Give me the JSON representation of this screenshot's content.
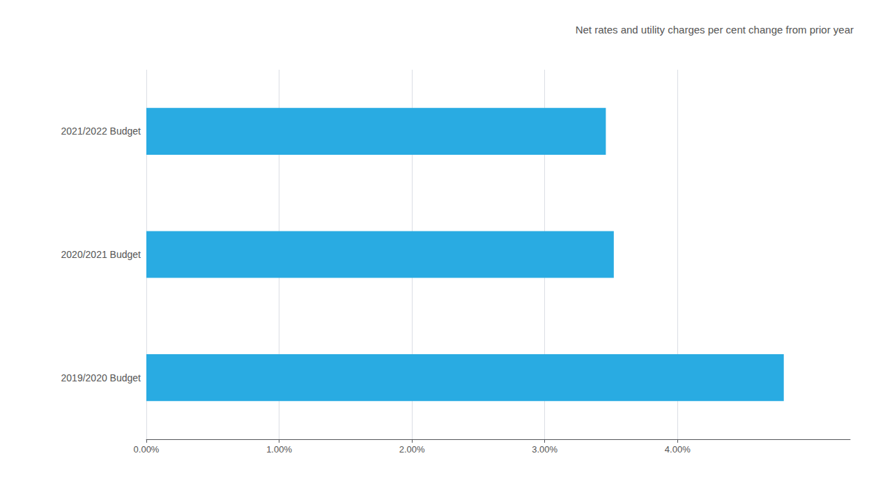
{
  "chart_data": {
    "type": "bar",
    "orientation": "horizontal",
    "title": "Net rates and utility charges per cent change from prior year",
    "categories": [
      "2019/2020 Budget",
      "2020/2021 Budget",
      "2021/2022 Budget"
    ],
    "values": [
      4.8,
      3.52,
      3.46
    ],
    "color": "#29ABE2",
    "xlim": [
      0,
      5.3
    ],
    "xticks": [
      {
        "value": 0.0,
        "label": "0.00%"
      },
      {
        "value": 1.0,
        "label": "1.00%"
      },
      {
        "value": 2.0,
        "label": "2.00%"
      },
      {
        "value": 3.0,
        "label": "3.00%"
      },
      {
        "value": 4.0,
        "label": "4.00%"
      }
    ],
    "grid": true
  }
}
